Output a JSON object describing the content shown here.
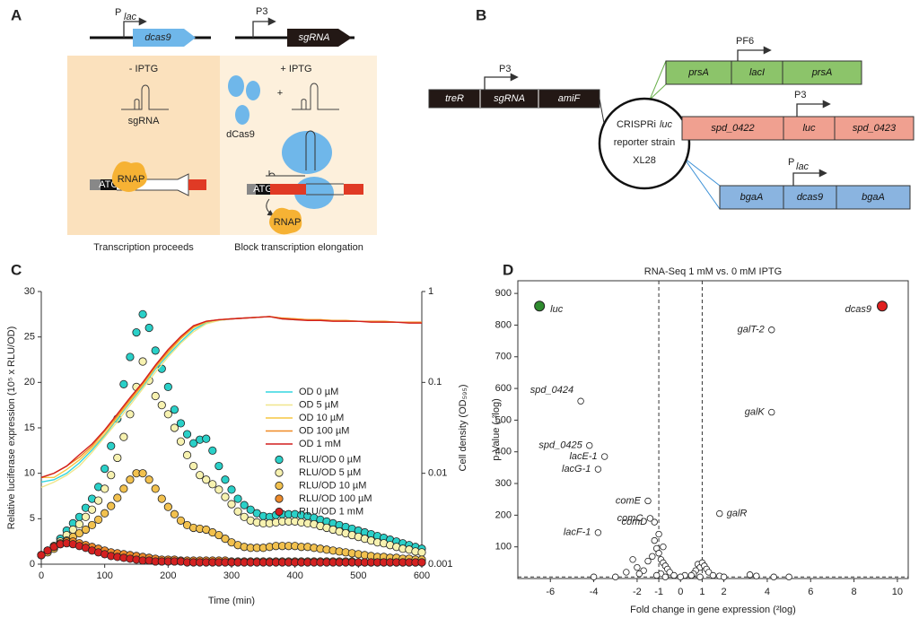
{
  "panel_a": {
    "label": "A",
    "promoter1": "P",
    "promoter1_sub": "lac",
    "gene1": "dcas9",
    "promoter2": "P3",
    "gene2": "sgRNA",
    "left_condition": "- IPTG",
    "right_condition": "+ IPTG",
    "sgrna_label": "sgRNA",
    "dcas9_label": "dCas9",
    "plus": "+",
    "atg": "ATG",
    "rnap": "RNAP",
    "left_caption": "Transcription proceeds",
    "right_caption": "Block transcription elongation"
  },
  "panel_b": {
    "label": "B",
    "strain": [
      "CRISPRi",
      "luc",
      "reporter strain",
      "XL28"
    ],
    "cassettes": [
      {
        "promoter": "P3",
        "genes": [
          "treR",
          "sgRNA",
          "amiF"
        ]
      },
      {
        "promoter": "PF6",
        "genes": [
          "prsA",
          "lacI",
          "prsA"
        ]
      },
      {
        "promoter": "P3",
        "genes": [
          "spd_0422",
          "luc",
          "spd_0423"
        ]
      },
      {
        "promoter": "P",
        "promoter_sub": "lac",
        "genes": [
          "bgaA",
          "dcas9",
          "bgaA"
        ]
      }
    ]
  },
  "chart_data": [
    {
      "type": "combo",
      "label": "C",
      "xlabel": "Time (min)",
      "ylabel": "Relative luciferase expression (10⁵ x RLU/OD)",
      "y2label": "Cell density (OD₅₉₅)",
      "xlim": [
        0,
        600
      ],
      "xticks": [
        0,
        100,
        200,
        300,
        400,
        500,
        600
      ],
      "ylim": [
        0,
        30
      ],
      "yticks": [
        0,
        5,
        10,
        15,
        20,
        25,
        30
      ],
      "y2lim": [
        0.001,
        1
      ],
      "y2ticks": [
        0.001,
        0.01,
        0.1,
        1
      ],
      "y2log": true,
      "x": [
        0,
        10,
        20,
        30,
        40,
        50,
        60,
        70,
        80,
        90,
        100,
        110,
        120,
        130,
        140,
        150,
        160,
        170,
        180,
        190,
        200,
        210,
        220,
        230,
        240,
        250,
        260,
        270,
        280,
        290,
        300,
        310,
        320,
        330,
        340,
        350,
        360,
        370,
        380,
        390,
        400,
        410,
        420,
        430,
        440,
        450,
        460,
        470,
        480,
        490,
        500,
        510,
        520,
        530,
        540,
        550,
        560,
        570,
        580,
        590,
        600
      ],
      "series": [
        {
          "name": "OD 0 µM",
          "kind": "line",
          "axis": "y2",
          "color": "#33d6e0",
          "x": [
            0,
            20,
            40,
            60,
            80,
            100,
            120,
            140,
            160,
            180,
            200,
            220,
            240,
            260,
            280,
            300,
            320,
            340,
            360,
            380,
            400,
            420,
            440,
            460,
            480,
            500,
            520,
            540,
            560,
            580,
            600
          ],
          "values": [
            0.008,
            0.0085,
            0.01,
            0.013,
            0.018,
            0.026,
            0.04,
            0.06,
            0.09,
            0.14,
            0.2,
            0.28,
            0.38,
            0.45,
            0.48,
            0.5,
            0.51,
            0.52,
            0.53,
            0.5,
            0.49,
            0.49,
            0.48,
            0.48,
            0.47,
            0.47,
            0.47,
            0.46,
            0.46,
            0.46,
            0.46
          ]
        },
        {
          "name": "OD 5 µM",
          "kind": "line",
          "axis": "y2",
          "color": "#f0e68c",
          "x": [
            0,
            20,
            40,
            60,
            80,
            100,
            120,
            140,
            160,
            180,
            200,
            220,
            240,
            260,
            280,
            300,
            320,
            340,
            360,
            380,
            400,
            420,
            440,
            460,
            480,
            500,
            520,
            540,
            560,
            580,
            600
          ],
          "values": [
            0.007,
            0.008,
            0.0095,
            0.012,
            0.017,
            0.025,
            0.037,
            0.056,
            0.085,
            0.13,
            0.19,
            0.27,
            0.36,
            0.44,
            0.48,
            0.5,
            0.51,
            0.52,
            0.53,
            0.5,
            0.49,
            0.49,
            0.48,
            0.48,
            0.47,
            0.47,
            0.47,
            0.46,
            0.46,
            0.46,
            0.46
          ]
        },
        {
          "name": "OD 10 µM",
          "kind": "line",
          "axis": "y2",
          "color": "#f5c542",
          "x": [
            0,
            20,
            40,
            60,
            80,
            100,
            120,
            140,
            160,
            180,
            200,
            220,
            240,
            260,
            280,
            300,
            320,
            340,
            360,
            380,
            400,
            420,
            440,
            460,
            480,
            500,
            520,
            540,
            560,
            580,
            600
          ],
          "values": [
            0.009,
            0.009,
            0.011,
            0.014,
            0.019,
            0.027,
            0.041,
            0.062,
            0.093,
            0.145,
            0.21,
            0.3,
            0.4,
            0.46,
            0.49,
            0.5,
            0.51,
            0.52,
            0.53,
            0.51,
            0.5,
            0.49,
            0.49,
            0.48,
            0.48,
            0.47,
            0.47,
            0.47,
            0.46,
            0.46,
            0.46
          ]
        },
        {
          "name": "OD 100 µM",
          "kind": "line",
          "axis": "y2",
          "color": "#f08a24",
          "x": [
            0,
            20,
            40,
            60,
            80,
            100,
            120,
            140,
            160,
            180,
            200,
            220,
            240,
            260,
            280,
            300,
            320,
            340,
            360,
            380,
            400,
            420,
            440,
            460,
            480,
            500,
            520,
            540,
            560,
            580,
            600
          ],
          "values": [
            0.009,
            0.01,
            0.012,
            0.015,
            0.02,
            0.029,
            0.043,
            0.065,
            0.097,
            0.15,
            0.22,
            0.31,
            0.41,
            0.47,
            0.49,
            0.5,
            0.51,
            0.52,
            0.53,
            0.51,
            0.5,
            0.49,
            0.49,
            0.48,
            0.48,
            0.47,
            0.47,
            0.47,
            0.46,
            0.46,
            0.46
          ]
        },
        {
          "name": "OD 1 mM",
          "kind": "line",
          "axis": "y2",
          "color": "#d21f1f",
          "x": [
            0,
            20,
            40,
            60,
            80,
            100,
            120,
            140,
            160,
            180,
            200,
            220,
            240,
            260,
            280,
            300,
            320,
            340,
            360,
            380,
            400,
            420,
            440,
            460,
            480,
            500,
            520,
            540,
            560,
            580,
            600
          ],
          "values": [
            0.009,
            0.01,
            0.012,
            0.016,
            0.021,
            0.03,
            0.045,
            0.068,
            0.1,
            0.155,
            0.23,
            0.32,
            0.42,
            0.47,
            0.49,
            0.5,
            0.51,
            0.52,
            0.53,
            0.5,
            0.49,
            0.48,
            0.48,
            0.47,
            0.47,
            0.47,
            0.46,
            0.46,
            0.46,
            0.45,
            0.45
          ]
        },
        {
          "name": "RLU/OD 0 µM",
          "kind": "scatter",
          "color": "#2ad0c8",
          "values": [
            1,
            1.5,
            2,
            2.8,
            3.7,
            4.5,
            5.2,
            6.2,
            7.2,
            8.5,
            10.5,
            13,
            16,
            19.8,
            22.8,
            25.5,
            27.5,
            26,
            23.5,
            21.5,
            19.5,
            17,
            15.5,
            14.3,
            13.3,
            13.7,
            13.8,
            12.5,
            10.8,
            9.3,
            8.2,
            7.2,
            6.5,
            6,
            5.6,
            5.3,
            5.2,
            5.4,
            5.5,
            5.5,
            5.5,
            5.4,
            5.3,
            5.1,
            4.9,
            4.7,
            4.5,
            4.3,
            4.1,
            3.9,
            3.7,
            3.5,
            3.3,
            3.1,
            2.9,
            2.7,
            2.5,
            2.3,
            2.1,
            1.9,
            1.7
          ]
        },
        {
          "name": "RLU/OD 5 µM",
          "kind": "scatter",
          "color": "#f7f2b0",
          "values": [
            1,
            1.4,
            1.9,
            2.5,
            3.2,
            3.8,
            4.4,
            5.2,
            6,
            7,
            8.3,
            9.8,
            11.7,
            14,
            16.5,
            19.5,
            22.3,
            20.2,
            18.5,
            17.5,
            16.5,
            15,
            13.5,
            12,
            10.8,
            9.8,
            9.3,
            8.8,
            8.2,
            7.4,
            6.6,
            5.8,
            5.2,
            4.8,
            4.6,
            4.5,
            4.5,
            4.6,
            4.7,
            4.7,
            4.7,
            4.6,
            4.5,
            4.4,
            4.2,
            4,
            3.8,
            3.6,
            3.4,
            3.2,
            3,
            2.8,
            2.6,
            2.4,
            2.3,
            2.1,
            1.9,
            1.7,
            1.6,
            1.4,
            1.3
          ]
        },
        {
          "name": "RLU/OD 10 µM",
          "kind": "scatter",
          "color": "#f2c14e",
          "values": [
            1,
            1.3,
            1.7,
            2.2,
            2.6,
            3,
            3.4,
            3.8,
            4.3,
            4.9,
            5.6,
            6.4,
            7.3,
            8.3,
            9.3,
            10,
            10,
            9.3,
            8.3,
            7.2,
            6.3,
            5.5,
            4.8,
            4.3,
            4,
            3.9,
            3.8,
            3.5,
            3.2,
            2.8,
            2.4,
            2.1,
            1.9,
            1.8,
            1.8,
            1.8,
            1.9,
            2,
            2,
            2,
            2,
            1.9,
            1.9,
            1.8,
            1.7,
            1.6,
            1.5,
            1.4,
            1.3,
            1.2,
            1.1,
            1,
            0.9,
            0.8,
            0.8,
            0.7,
            0.7,
            0.6,
            0.6,
            0.5,
            0.5
          ]
        },
        {
          "name": "RLU/OD 100 µM",
          "kind": "scatter",
          "color": "#ee8a2a",
          "values": [
            1,
            1.5,
            2,
            2.3,
            2.5,
            2.5,
            2.3,
            2.1,
            1.9,
            1.7,
            1.5,
            1.3,
            1.2,
            1.1,
            1,
            0.9,
            0.8,
            0.7,
            0.6,
            0.5,
            0.5,
            0.5,
            0.4,
            0.4,
            0.4,
            0.4,
            0.4,
            0.4,
            0.4,
            0.4,
            0.3,
            0.3,
            0.3,
            0.3,
            0.3,
            0.3,
            0.3,
            0.3,
            0.3,
            0.3,
            0.3,
            0.3,
            0.3,
            0.3,
            0.3,
            0.3,
            0.3,
            0.3,
            0.3,
            0.3,
            0.2,
            0.2,
            0.2,
            0.2,
            0.2,
            0.2,
            0.2,
            0.2,
            0.2,
            0.2,
            0.2
          ]
        },
        {
          "name": "RLU/OD 1 mM",
          "kind": "scatter",
          "color": "#d42020",
          "values": [
            1,
            1.5,
            1.9,
            2.2,
            2.3,
            2.2,
            2,
            1.8,
            1.5,
            1.3,
            1.1,
            0.9,
            0.8,
            0.7,
            0.6,
            0.5,
            0.4,
            0.4,
            0.3,
            0.3,
            0.3,
            0.3,
            0.3,
            0.2,
            0.2,
            0.2,
            0.2,
            0.2,
            0.2,
            0.2,
            0.2,
            0.2,
            0.2,
            0.2,
            0.2,
            0.2,
            0.2,
            0.2,
            0.2,
            0.2,
            0.2,
            0.2,
            0.2,
            0.2,
            0.2,
            0.2,
            0.2,
            0.2,
            0.2,
            0.2,
            0.2,
            0.2,
            0.2,
            0.2,
            0.2,
            0.2,
            0.2,
            0.2,
            0.2,
            0.2,
            0.2
          ]
        }
      ]
    },
    {
      "type": "scatter",
      "label": "D",
      "title": "RNA-Seq 1 mM vs. 0 mM IPTG",
      "xlabel": "Fold change in gene expression (²log)",
      "ylabel": "p-Value (-²log)",
      "xlim": [
        -7.5,
        10.5
      ],
      "xticks": [
        -6,
        -4,
        -2,
        -1,
        0,
        1,
        2,
        4,
        6,
        8,
        10
      ],
      "ylim": [
        0,
        940
      ],
      "yticks": [
        100,
        200,
        300,
        400,
        500,
        600,
        700,
        800,
        900
      ],
      "vlines": [
        -1,
        1
      ],
      "hline": 5,
      "series": [
        {
          "name": "luc",
          "color": "#2e8b2e",
          "x": [
            -6.5
          ],
          "values": [
            860
          ]
        },
        {
          "name": "dcas9",
          "color": "#e02020",
          "x": [
            9.3
          ],
          "values": [
            860
          ]
        },
        {
          "color": "#ffffff",
          "x": [
            4.2,
            4.2,
            1.8,
            -4.6,
            -4.2,
            -3.5,
            -3.8,
            -1.5,
            -1.4,
            -1.2,
            -3.8,
            -1.2,
            -1.1,
            -1,
            -0.9,
            -0.8,
            -0.7,
            -0.6,
            -1.3,
            -1.5,
            -2.2,
            -2.5,
            -2,
            -1.7,
            -1.9,
            -0.5,
            -0.3,
            0.8,
            0.9,
            1,
            1.1,
            0.7,
            0.6,
            0.5,
            1.2,
            1.3,
            1.5,
            3.2,
            3.5,
            4.3,
            5,
            1.8,
            2,
            -3,
            -4,
            -1,
            -0.8,
            -0.9,
            -1.1,
            -0.7,
            0.9,
            0.2,
            0
          ],
          "values": [
            785,
            525,
            205,
            560,
            420,
            385,
            345,
            245,
            190,
            178,
            145,
            120,
            95,
            80,
            60,
            50,
            40,
            30,
            70,
            55,
            60,
            20,
            35,
            25,
            15,
            20,
            10,
            45,
            35,
            50,
            40,
            25,
            15,
            10,
            30,
            20,
            10,
            12,
            8,
            5,
            5,
            8,
            5,
            5,
            5,
            140,
            100,
            15,
            10,
            5,
            5,
            10,
            5
          ],
          "labels": [
            "galT-2",
            "galK",
            "galR",
            "spd_0424",
            "spd_0425",
            "lacE-1",
            "lacG-1",
            "comE",
            "comC",
            "comD",
            "lacF-1",
            null,
            null,
            null,
            null,
            null,
            null,
            null,
            null,
            null,
            null,
            null,
            null,
            null,
            null,
            null,
            null,
            null,
            null,
            null,
            null,
            null,
            null,
            null,
            null,
            null,
            null,
            null,
            null,
            null,
            null,
            null,
            null,
            null,
            null,
            null,
            null,
            null,
            null,
            null,
            null,
            null,
            null
          ]
        }
      ]
    }
  ]
}
